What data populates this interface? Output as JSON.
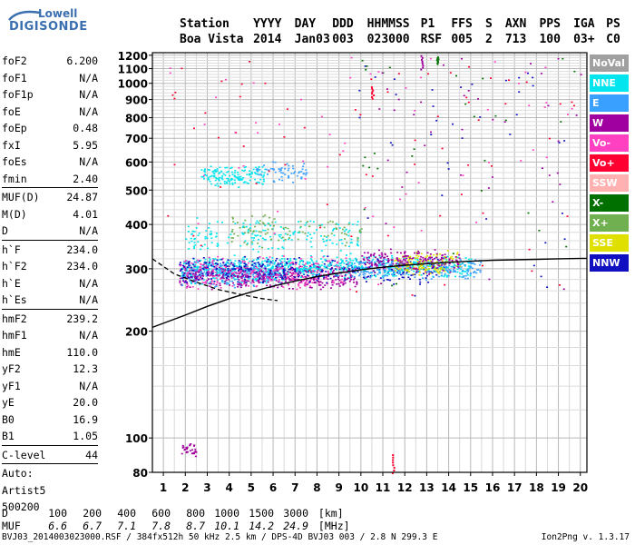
{
  "logo": {
    "line1": "Lowell",
    "line2": "DIGISONDE"
  },
  "header": {
    "labels": [
      "Station",
      "YYYY",
      "DAY",
      "DDD",
      "HHMMSS",
      "P1",
      "FFS",
      "S",
      "AXN",
      "PPS",
      "IGA",
      "PS"
    ],
    "values": [
      "Boa Vista",
      "2014",
      "Jan03",
      "003",
      "023000",
      "RSF",
      "005",
      "2",
      "713",
      "100",
      "03+",
      "C0"
    ]
  },
  "params": [
    [
      {
        "k": "foF2",
        "v": "6.200"
      },
      {
        "k": "foF1",
        "v": "N/A"
      },
      {
        "k": "foF1p",
        "v": "N/A"
      },
      {
        "k": "foE",
        "v": "N/A"
      },
      {
        "k": "foEp",
        "v": "0.48"
      },
      {
        "k": "fxI",
        "v": "5.95"
      },
      {
        "k": "foEs",
        "v": "N/A"
      },
      {
        "k": "fmin",
        "v": "2.40"
      }
    ],
    [
      {
        "k": "MUF(D)",
        "v": "24.87"
      },
      {
        "k": "M(D)",
        "v": "4.01"
      },
      {
        "k": "D",
        "v": "N/A"
      }
    ],
    [
      {
        "k": "h`F",
        "v": "234.0"
      },
      {
        "k": "h`F2",
        "v": "234.0"
      },
      {
        "k": "h`E",
        "v": "N/A"
      },
      {
        "k": "h`Es",
        "v": "N/A"
      }
    ],
    [
      {
        "k": "hmF2",
        "v": "239.2"
      },
      {
        "k": "hmF1",
        "v": "N/A"
      },
      {
        "k": "hmE",
        "v": "110.0"
      },
      {
        "k": "yF2",
        "v": "12.3"
      },
      {
        "k": "yF1",
        "v": "N/A"
      },
      {
        "k": "yE",
        "v": "20.0"
      },
      {
        "k": "B0",
        "v": "16.9"
      },
      {
        "k": "B1",
        "v": "1.05"
      }
    ],
    [
      {
        "k": "C-level",
        "v": "44"
      }
    ],
    [
      {
        "k": "Auto:",
        "v": ""
      },
      {
        "k": "Artist5",
        "v": ""
      },
      {
        "k": "500200",
        "v": ""
      }
    ]
  ],
  "legend": [
    {
      "label": "NoVal",
      "color": "#a0a0a0"
    },
    {
      "label": "NNE",
      "color": "#00e5ee"
    },
    {
      "label": "E",
      "color": "#3aa0ff"
    },
    {
      "label": "W",
      "color": "#a000a0"
    },
    {
      "label": "Vo-",
      "color": "#ff40c0"
    },
    {
      "label": "Vo+",
      "color": "#ff0030"
    },
    {
      "label": "SSW",
      "color": "#ffb0b0"
    },
    {
      "label": "X-",
      "color": "#007000"
    },
    {
      "label": "X+",
      "color": "#70b050"
    },
    {
      "label": "SSE",
      "color": "#e0e000"
    },
    {
      "label": "NNW",
      "color": "#1010c0"
    }
  ],
  "chart_data": {
    "type": "scatter",
    "title": "",
    "xlabel": "",
    "ylabel": "",
    "xlim": [
      0.5,
      20.3
    ],
    "ylim": [
      80,
      1220
    ],
    "y_scale": "log",
    "xticks": [
      1,
      2,
      3,
      4,
      5,
      6,
      7,
      8,
      9,
      10,
      11,
      12,
      13,
      14,
      15,
      16,
      17,
      18,
      19,
      20
    ],
    "yticks": [
      80,
      100,
      200,
      300,
      400,
      500,
      600,
      700,
      800,
      900,
      1000,
      1100,
      1200
    ],
    "grid": true,
    "legend_position": "right",
    "clusters": [
      {
        "series": "NNE",
        "x": [
          1.8,
          6.8
        ],
        "y": [
          270,
          330
        ],
        "n": 420
      },
      {
        "series": "E",
        "x": [
          1.8,
          6.5
        ],
        "y": [
          265,
          320
        ],
        "n": 220
      },
      {
        "series": "W",
        "x": [
          1.7,
          9.8
        ],
        "y": [
          262,
          310
        ],
        "n": 420
      },
      {
        "series": "Vo-",
        "x": [
          1.7,
          9.5
        ],
        "y": [
          260,
          330
        ],
        "n": 260
      },
      {
        "series": "NNW",
        "x": [
          1.7,
          13.8
        ],
        "y": [
          270,
          330
        ],
        "n": 330
      },
      {
        "series": "NNE",
        "x": [
          7.0,
          15.0
        ],
        "y": [
          280,
          330
        ],
        "n": 340
      },
      {
        "series": "E",
        "x": [
          9.5,
          15.5
        ],
        "y": [
          280,
          325
        ],
        "n": 200
      },
      {
        "series": "SSE",
        "x": [
          11.5,
          14.5
        ],
        "y": [
          285,
          340
        ],
        "n": 140
      },
      {
        "series": "W",
        "x": [
          10.0,
          14.5
        ],
        "y": [
          290,
          345
        ],
        "n": 160
      },
      {
        "series": "NNE",
        "x": [
          2.7,
          5.6
        ],
        "y": [
          510,
          590
        ],
        "n": 150
      },
      {
        "series": "E",
        "x": [
          5.2,
          7.5
        ],
        "y": [
          520,
          610
        ],
        "n": 60
      },
      {
        "series": "NNE",
        "x": [
          2.0,
          10.0
        ],
        "y": [
          330,
          420
        ],
        "n": 180
      },
      {
        "series": "X+",
        "x": [
          4.0,
          10.0
        ],
        "y": [
          340,
          430
        ],
        "n": 90
      },
      {
        "series": "W",
        "x": [
          1.8,
          2.5
        ],
        "y": [
          88,
          98
        ],
        "n": 30
      },
      {
        "series": "Vo+",
        "x": [
          1.0,
          20.0
        ],
        "y": [
          250,
          1200
        ],
        "n": 70
      },
      {
        "series": "Vo-",
        "x": [
          1.0,
          20.0
        ],
        "y": [
          250,
          1200
        ],
        "n": 60
      },
      {
        "series": "X-",
        "x": [
          10.0,
          20.0
        ],
        "y": [
          250,
          1200
        ],
        "n": 30
      },
      {
        "series": "W",
        "x": [
          10.0,
          20.0
        ],
        "y": [
          250,
          1200
        ],
        "n": 40
      },
      {
        "series": "NNW",
        "x": [
          9.0,
          20.0
        ],
        "y": [
          250,
          1200
        ],
        "n": 40
      }
    ],
    "traces": [
      {
        "series": "Vo+",
        "x": [
          10.45,
          10.55
        ],
        "y": [
          910,
          980
        ]
      },
      {
        "series": "Vo+",
        "x": [
          11.4,
          11.5
        ],
        "y": [
          80,
          90
        ]
      },
      {
        "series": "W",
        "x": [
          12.7,
          12.8
        ],
        "y": [
          1100,
          1200
        ]
      },
      {
        "series": "X-",
        "x": [
          13.4,
          13.5
        ],
        "y": [
          1140,
          1190
        ]
      }
    ],
    "profile_curve": {
      "x": [
        0.5,
        2,
        3,
        4,
        5,
        6,
        7,
        8,
        9,
        10,
        11,
        12,
        13,
        14,
        15,
        16,
        17,
        18,
        19,
        20.3
      ],
      "y": [
        205,
        222,
        235,
        247,
        258,
        268,
        277,
        285,
        292,
        298,
        303,
        307,
        310,
        313,
        315,
        317,
        318,
        319,
        320,
        321
      ]
    },
    "dashed_trace": {
      "x": [
        0.5,
        1.5,
        2.5,
        3.5,
        4.5,
        5.5,
        6.2
      ],
      "y": [
        320,
        290,
        275,
        262,
        254,
        247,
        244
      ]
    }
  },
  "muf_table": {
    "d_label": "D",
    "muf_label": "MUF",
    "d_values": [
      "100",
      "200",
      "400",
      "600",
      "800",
      "1000",
      "1500",
      "3000"
    ],
    "d_unit": "[km]",
    "muf_values": [
      "6.6",
      "6.7",
      "7.1",
      "7.8",
      "8.7",
      "10.1",
      "14.2",
      "24.9"
    ],
    "muf_unit": "[MHz]"
  },
  "footer": "BVJ03_2014003023000.RSF / 384fx512h 50 kHz 2.5 km / DPS-4D BVJ03 003 / 2.8 N 299.3 E",
  "version": "Ion2Png v. 1.3.17"
}
